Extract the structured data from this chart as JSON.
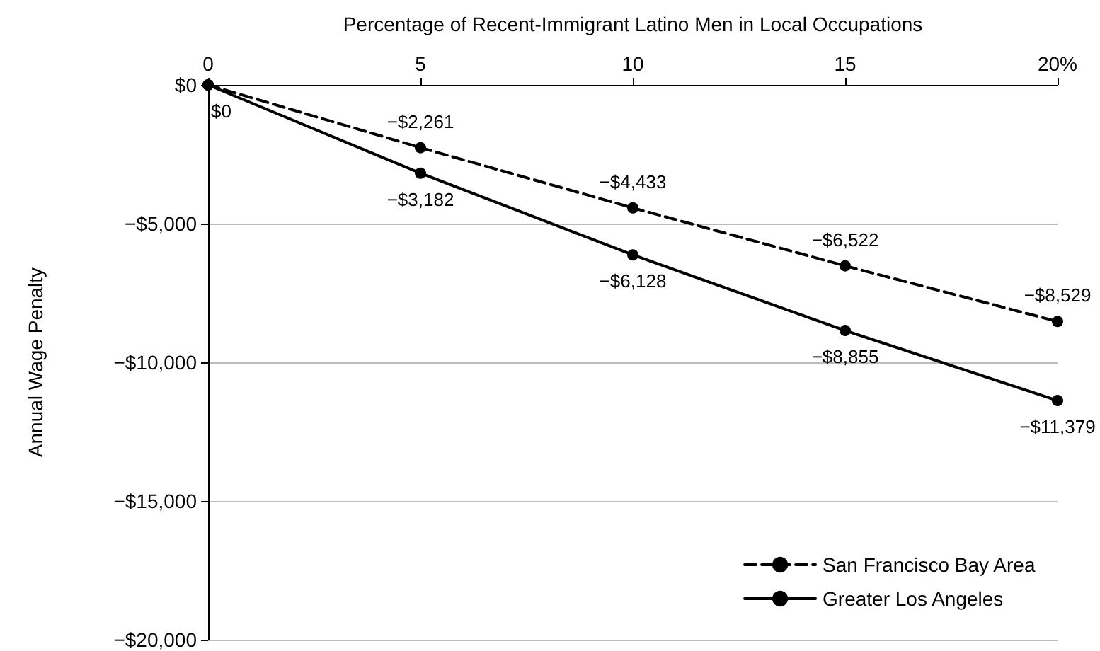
{
  "chart_data": {
    "type": "line",
    "xlabel": "Percentage of Recent-Immigrant Latino Men in Local Occupations",
    "ylabel": "Annual Wage Penalty",
    "x": [
      0,
      5,
      10,
      15,
      20
    ],
    "series": [
      {
        "name": "San Francisco Bay Area",
        "color": "#000000",
        "line_style": "dashed",
        "values": [
          0,
          -2261,
          -4433,
          -6522,
          -8529
        ],
        "value_labels": [
          null,
          "−$2,261",
          "−$4,433",
          "−$6,522",
          "−$8,529"
        ]
      },
      {
        "name": "Greater Los Angeles",
        "color": "#000000",
        "line_style": "solid",
        "values": [
          0,
          -3182,
          -6128,
          -8855,
          -11379
        ],
        "value_labels": [
          "$0",
          "−$3,182",
          "−$6,128",
          "−$8,855",
          "−$11,379"
        ]
      }
    ],
    "xlim": [
      0,
      20
    ],
    "xticks": [
      0,
      5,
      10,
      15,
      {
        "value": 20,
        "label": "20%"
      }
    ],
    "ylim": [
      -20000,
      0
    ],
    "yticks": [
      {
        "value": 0,
        "label": "$0"
      },
      {
        "value": -5000,
        "label": "−$5,000"
      },
      {
        "value": -10000,
        "label": "−$10,000"
      },
      {
        "value": -15000,
        "label": "−$15,000"
      },
      {
        "value": -20000,
        "label": "−$20,000"
      }
    ],
    "grid": "y",
    "legend": "bottom right",
    "marker": "circle"
  }
}
